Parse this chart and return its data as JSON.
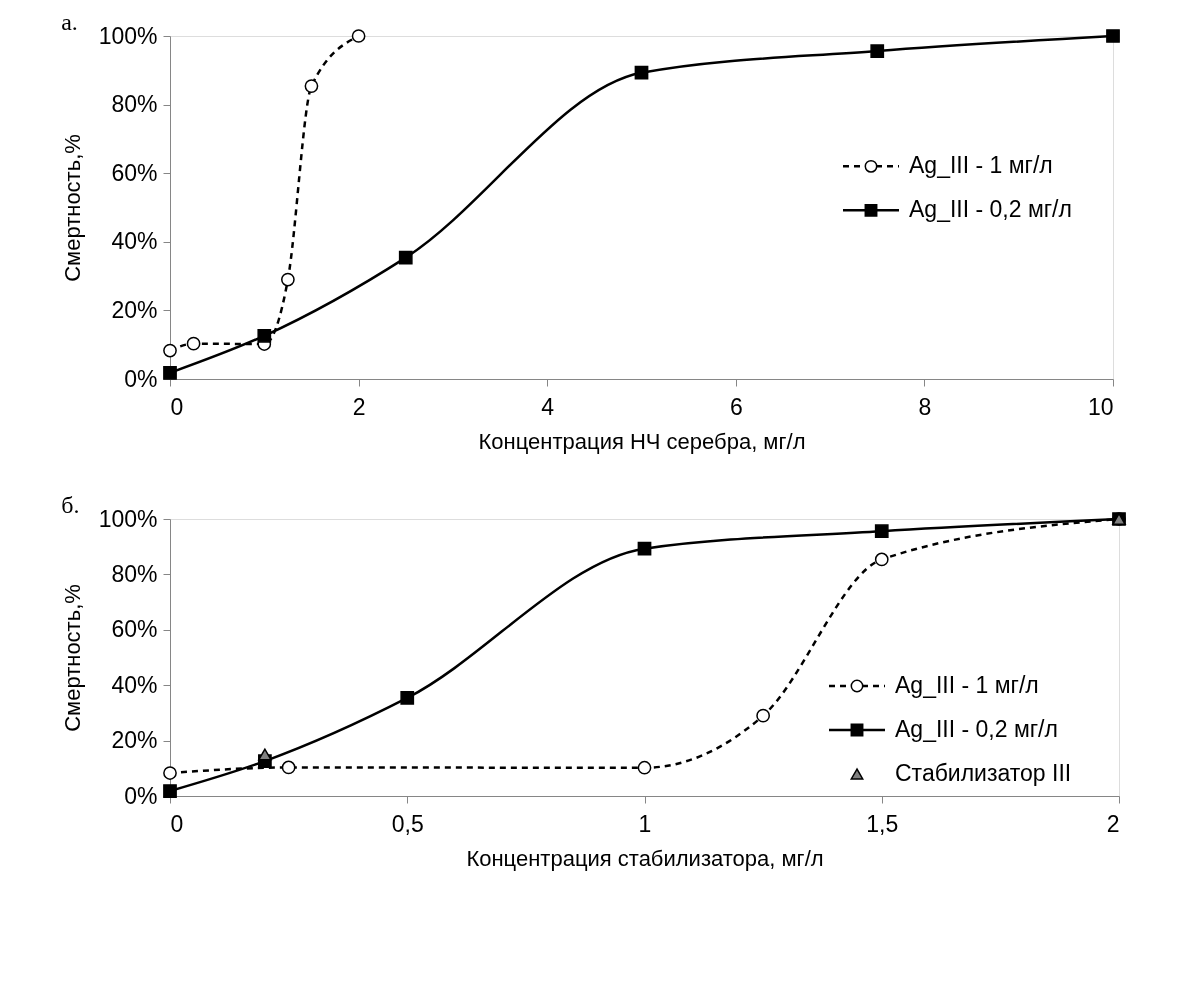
{
  "chart_data": [
    {
      "type": "line",
      "title": "а.",
      "xlabel": "Концентрация НЧ серебра, мг/л",
      "ylabel": "Смертность,%",
      "xlim": [
        0,
        10
      ],
      "xticks": [
        0,
        2,
        4,
        6,
        8,
        10
      ],
      "ylim": [
        0,
        100
      ],
      "yticks": [
        {
          "value": 0,
          "label": "0%"
        },
        {
          "value": 20,
          "label": "20%"
        },
        {
          "value": 40,
          "label": "40%"
        },
        {
          "value": 60,
          "label": "60%"
        },
        {
          "value": 80,
          "label": "80%"
        },
        {
          "value": 100,
          "label": "100%"
        }
      ],
      "grid": false,
      "legend": "right",
      "series": [
        {
          "name": "Ag_III - 1 мг/л",
          "color": "#000000",
          "marker": "circle",
          "line_style": "dashed",
          "x": [
            0,
            0.25,
            1,
            1.25,
            1.5,
            2
          ],
          "values": [
            8.3,
            10.3,
            10.2,
            29,
            85.4,
            100
          ]
        },
        {
          "name": "Ag_III - 0,2 мг/л",
          "color": "#000000",
          "marker": "square",
          "line_style": "solid",
          "x": [
            0,
            1,
            2.5,
            5,
            7.5,
            10
          ],
          "values": [
            1.8,
            12.6,
            35.4,
            89.3,
            95.6,
            100
          ]
        }
      ]
    },
    {
      "type": "line",
      "title": "б.",
      "xlabel": "Концентрация стабилизатора, мг/л",
      "ylabel": "Смертность,%",
      "xlim": [
        0,
        2
      ],
      "xticks": [
        0,
        {
          "value": 0.5,
          "label": "0,5"
        },
        1,
        {
          "value": 1.5,
          "label": "1,5"
        },
        2
      ],
      "ylim": [
        0,
        100
      ],
      "yticks": [
        {
          "value": 0,
          "label": "0%"
        },
        {
          "value": 20,
          "label": "20%"
        },
        {
          "value": 40,
          "label": "40%"
        },
        {
          "value": 60,
          "label": "60%"
        },
        {
          "value": 80,
          "label": "80%"
        },
        {
          "value": 100,
          "label": "100%"
        }
      ],
      "grid": false,
      "legend": "bottom right",
      "series": [
        {
          "name": "Ag_III - 1 мг/л",
          "color": "#000000",
          "marker": "circle",
          "line_style": "dashed",
          "x": [
            0,
            0.25,
            1,
            1.25,
            1.5,
            2
          ],
          "values": [
            8.3,
            10.3,
            10.2,
            29,
            85.4,
            100
          ]
        },
        {
          "name": "Ag_III - 0,2 мг/л",
          "color": "#000000",
          "marker": "square",
          "line_style": "solid",
          "x": [
            0,
            0.2,
            0.5,
            1,
            1.5,
            2
          ],
          "values": [
            1.8,
            12.6,
            35.4,
            89.3,
            95.6,
            100
          ]
        },
        {
          "name": "Стабилизатор III",
          "type": "scatter",
          "color": "#808080",
          "marker": "triangle",
          "x": [
            0.2,
            2
          ],
          "values": [
            15,
            100
          ]
        }
      ]
    }
  ]
}
